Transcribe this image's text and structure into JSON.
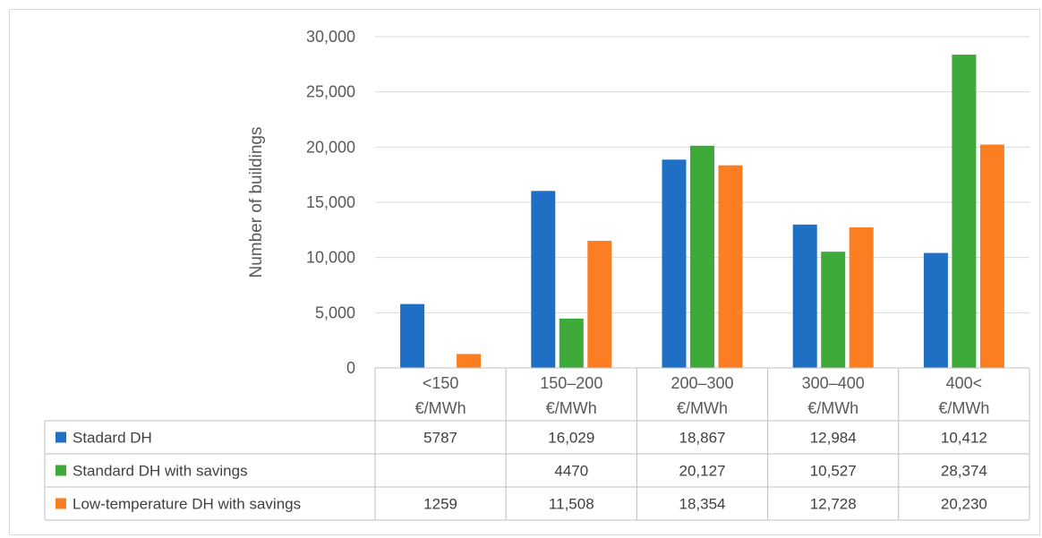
{
  "chart_data": {
    "type": "bar",
    "title": "",
    "ylabel": "Number of buildings",
    "xlabel": "",
    "ylim": [
      0,
      30000
    ],
    "yticks": [
      0,
      5000,
      10000,
      15000,
      20000,
      25000,
      30000
    ],
    "ytick_labels": [
      "0",
      "5,000",
      "10,000",
      "15,000",
      "20,000",
      "25,000",
      "30,000"
    ],
    "grid": true,
    "legend": "data table below chart",
    "categories": [
      [
        "<150",
        "€/MWh"
      ],
      [
        "150–200",
        "€/MWh"
      ],
      [
        "200–300",
        "€/MWh"
      ],
      [
        "300–400",
        "€/MWh"
      ],
      [
        "400<",
        "€/MWh"
      ]
    ],
    "series": [
      {
        "name": "Stadard DH",
        "color": "#1f6fc5",
        "values": [
          5787,
          16029,
          18867,
          12984,
          10412
        ],
        "labels": [
          "5787",
          "16,029",
          "18,867",
          "12,984",
          "10,412"
        ]
      },
      {
        "name": "Standard DH with savings",
        "color": "#3daa3a",
        "values": [
          null,
          4470,
          20127,
          10527,
          28374
        ],
        "labels": [
          "",
          "4470",
          "20,127",
          "10,527",
          "28,374"
        ]
      },
      {
        "name": "Low-temperature DH with savings",
        "color": "#fb7e22",
        "values": [
          1259,
          11508,
          18354,
          12728,
          20230
        ],
        "labels": [
          "1259",
          "11,508",
          "18,354",
          "12,728",
          "20,230"
        ]
      }
    ]
  }
}
